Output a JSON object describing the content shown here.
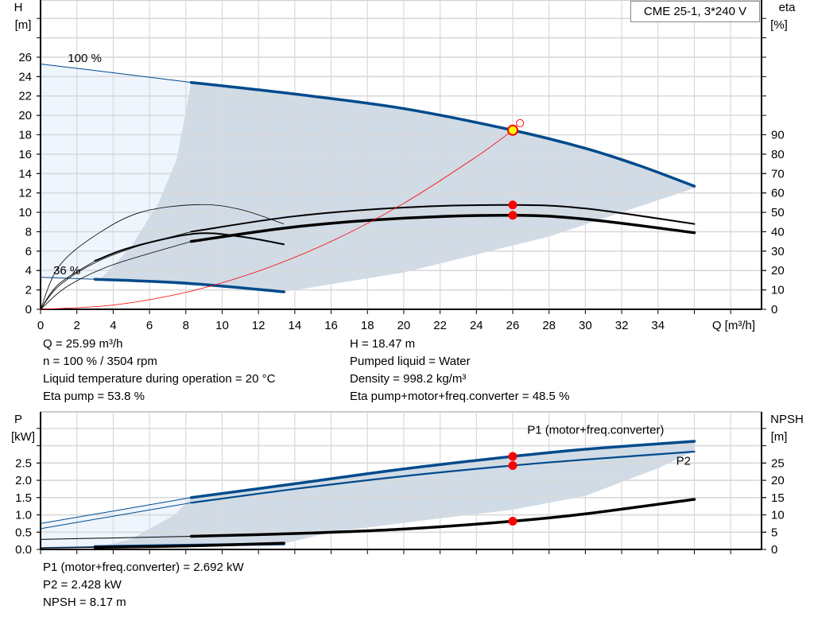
{
  "colors": {
    "qh": "#004A8C",
    "eta": "#000000",
    "system": "#FF0000",
    "dark_area": "#D0DBE6",
    "light_area": "#EEF5FD",
    "grid": "#D9D9D9",
    "point": "#FF0000",
    "duty_point": "#FFFF00"
  },
  "legend_box": "CME 25-1, 3*240 V",
  "chart_data": [
    {
      "type": "line",
      "xlabel": "Q [m³/h]",
      "ylabel": "H",
      "ylabel_unit": "[m]",
      "y2label": "eta",
      "y2label_unit": "[%]",
      "xlim": [
        0,
        39.7
      ],
      "ylim": [
        0,
        31.9
      ],
      "y2lim": [
        0,
        159.5
      ],
      "x_ticks": [
        0,
        2,
        4,
        6,
        8,
        10,
        12,
        14,
        16,
        18,
        20,
        22,
        24,
        26,
        28,
        30,
        32,
        34
      ],
      "y_ticks": [
        0,
        2,
        4,
        6,
        8,
        10,
        12,
        14,
        16,
        18,
        20,
        22,
        24,
        26
      ],
      "y2_ticks": [
        0,
        10,
        20,
        30,
        40,
        50,
        60,
        70,
        80,
        90
      ],
      "grid": true,
      "curve_labels": [
        {
          "text": "100 %",
          "x": 1.5,
          "y": 25.5
        },
        {
          "text": "36 %",
          "x": 0.7,
          "y": 3.6
        }
      ],
      "areas": [
        {
          "kind": "light",
          "points": [
            [
              0,
              25.3
            ],
            [
              8.3,
              23.4
            ],
            [
              7.5,
              15.5
            ],
            [
              6.5,
              11
            ],
            [
              5,
              6.5
            ],
            [
              3.3,
              3.1
            ],
            [
              0,
              3.3
            ]
          ]
        },
        {
          "kind": "dark",
          "points": [
            [
              8.3,
              23.4
            ],
            [
              14,
              22.2
            ],
            [
              20,
              20.7
            ],
            [
              26,
              18.47
            ],
            [
              30,
              16.6
            ],
            [
              33,
              14.8
            ],
            [
              36,
              12.7
            ],
            [
              36,
              12.5
            ],
            [
              28,
              7.5
            ],
            [
              20,
              3.8
            ],
            [
              13.4,
              1.8
            ],
            [
              3.3,
              3.1
            ],
            [
              5,
              6.5
            ],
            [
              6.5,
              11
            ],
            [
              7.5,
              15.5
            ],
            [
              8.3,
              23.4
            ]
          ]
        }
      ],
      "series": [
        {
          "axis": "left",
          "kind": "qh",
          "extrapolated": [
            [
              0,
              25.3
            ],
            [
              4,
              24.4
            ],
            [
              8.3,
              23.4
            ]
          ],
          "points": [
            [
              8.3,
              23.4
            ],
            [
              14,
              22.2
            ],
            [
              20,
              20.7
            ],
            [
              26,
              18.47
            ],
            [
              30,
              16.6
            ],
            [
              33,
              14.8
            ],
            [
              36,
              12.7
            ]
          ]
        },
        {
          "axis": "left",
          "kind": "qh",
          "extrapolated": [
            [
              0,
              3.3
            ],
            [
              3,
              3.1
            ]
          ],
          "points": [
            [
              3,
              3.1
            ],
            [
              8,
              2.7
            ],
            [
              13.4,
              1.8
            ]
          ]
        },
        {
          "axis": "right",
          "kind": "eta",
          "extrapolated": [
            [
              0,
              0
            ],
            [
              1,
              12
            ],
            [
              3,
              24
            ],
            [
              5.5,
              33
            ],
            [
              8.3,
              40
            ]
          ],
          "points": [
            [
              8.3,
              40
            ],
            [
              14,
              48
            ],
            [
              20,
              52.5
            ],
            [
              26,
              53.8
            ],
            [
              30,
              52
            ],
            [
              36,
              44
            ]
          ]
        },
        {
          "axis": "right",
          "kind": "eta-bold",
          "extrapolated": [
            [
              0,
              0
            ],
            [
              1.5,
              12
            ],
            [
              4,
              23
            ],
            [
              8.3,
              35
            ]
          ],
          "points": [
            [
              8.3,
              35
            ],
            [
              14,
              42.5
            ],
            [
              20,
              47
            ],
            [
              26,
              48.5
            ],
            [
              30,
              46.5
            ],
            [
              36,
              39.5
            ]
          ]
        },
        {
          "axis": "right",
          "kind": "eta",
          "extrapolated": [
            [
              0,
              0
            ],
            [
              1,
              13
            ],
            [
              3,
              25
            ]
          ],
          "points": [
            [
              3,
              25
            ],
            [
              5,
              32
            ],
            [
              8.5,
              39
            ],
            [
              11,
              37.5
            ],
            [
              13.4,
              33.5
            ]
          ]
        },
        {
          "axis": "right",
          "kind": "eta",
          "extrapolated": [
            [
              0,
              0
            ],
            [
              1,
              22
            ],
            [
              3,
              38
            ],
            [
              5.5,
              50
            ],
            [
              8.7,
              54
            ],
            [
              11,
              51.5
            ],
            [
              13.4,
              44
            ]
          ],
          "points": []
        },
        {
          "axis": "left",
          "kind": "system",
          "extrapolated": [],
          "points": [
            [
              0,
              0
            ],
            [
              4,
              0.44
            ],
            [
              8,
              1.75
            ],
            [
              12,
              3.94
            ],
            [
              16,
              7.0
            ],
            [
              20,
              10.93
            ],
            [
              24,
              15.74
            ],
            [
              26,
              18.47
            ]
          ]
        }
      ],
      "markers": [
        {
          "axis": "left",
          "kind": "duty",
          "x": 26,
          "y": 18.47
        },
        {
          "axis": "left",
          "kind": "open",
          "x": 26.4,
          "y": 19.2
        },
        {
          "axis": "right",
          "kind": "dot",
          "x": 26,
          "y": 53.8
        },
        {
          "axis": "right",
          "kind": "dot",
          "x": 26,
          "y": 48.5
        }
      ]
    },
    {
      "type": "line",
      "ylabel": "P",
      "ylabel_unit": "[kW]",
      "y2label": "NPSH",
      "y2label_unit": "[m]",
      "xlim": [
        0,
        39.7
      ],
      "ylim": [
        0,
        3.98
      ],
      "y2lim": [
        0,
        39.8
      ],
      "y_ticks": [
        "0.0",
        "0.5",
        "1.0",
        "1.5",
        "2.0",
        "2.5"
      ],
      "y2_ticks": [
        0,
        5,
        10,
        15,
        20,
        25
      ],
      "grid": true,
      "series_labels": [
        {
          "text": "P1 (motor+freq.converter)",
          "x": 26.8,
          "y": 3.35
        },
        {
          "text": "P2",
          "x": 35,
          "y": 2.45
        }
      ],
      "areas": [
        {
          "kind": "light",
          "points": [
            [
              0,
              0.75
            ],
            [
              8.3,
              1.5
            ],
            [
              7.4,
              1.0
            ],
            [
              6,
              0.6
            ],
            [
              5,
              0.3
            ],
            [
              3,
              0.05
            ],
            [
              0,
              0
            ]
          ]
        },
        {
          "kind": "dark",
          "points": [
            [
              8.3,
              1.5
            ],
            [
              14,
              1.9
            ],
            [
              20,
              2.33
            ],
            [
              26,
              2.692
            ],
            [
              30,
              2.9
            ],
            [
              36,
              3.13
            ],
            [
              36,
              2.85
            ],
            [
              34,
              2.35
            ],
            [
              30,
              1.55
            ],
            [
              26,
              1.15
            ],
            [
              22,
              0.9
            ],
            [
              16,
              0.5
            ],
            [
              13.4,
              0.17
            ],
            [
              7,
              0.1
            ],
            [
              3,
              0.05
            ],
            [
              5,
              0.3
            ],
            [
              6,
              0.6
            ],
            [
              7.4,
              1.0
            ],
            [
              8.3,
              1.5
            ]
          ]
        }
      ],
      "series": [
        {
          "axis": "left",
          "kind": "p1",
          "name": "P1 (motor+freq.converter)",
          "extrapolated": [
            [
              0,
              0.75
            ],
            [
              8.3,
              1.5
            ]
          ],
          "points": [
            [
              8.3,
              1.5
            ],
            [
              14,
              1.9
            ],
            [
              20,
              2.33
            ],
            [
              26,
              2.692
            ],
            [
              30,
              2.9
            ],
            [
              36,
              3.13
            ]
          ]
        },
        {
          "axis": "left",
          "kind": "p2",
          "name": "P2",
          "extrapolated": [
            [
              0,
              0.6
            ],
            [
              8.3,
              1.35
            ]
          ],
          "points": [
            [
              8.3,
              1.35
            ],
            [
              14,
              1.75
            ],
            [
              20,
              2.12
            ],
            [
              26,
              2.428
            ],
            [
              30,
              2.6
            ],
            [
              36,
              2.83
            ]
          ]
        },
        {
          "axis": "right",
          "kind": "npsh",
          "extrapolated": [
            [
              0,
              2.9
            ],
            [
              8.3,
              3.8
            ]
          ],
          "points": [
            [
              8.3,
              3.8
            ],
            [
              14,
              4.6
            ],
            [
              20,
              5.9
            ],
            [
              26,
              8.17
            ],
            [
              30,
              10.3
            ],
            [
              36,
              14.5
            ]
          ]
        },
        {
          "axis": "left",
          "kind": "p1",
          "extrapolated": [
            [
              0,
              0.05
            ],
            [
              3,
              0.08
            ]
          ],
          "points": [
            [
              3,
              0.08
            ],
            [
              8,
              0.12
            ],
            [
              13.4,
              0.16
            ]
          ]
        },
        {
          "axis": "right",
          "kind": "npsh",
          "extrapolated": [
            [
              0,
              0.4
            ],
            [
              3,
              0.6
            ]
          ],
          "points": [
            [
              3,
              0.6
            ],
            [
              8,
              1.0
            ],
            [
              13.4,
              1.8
            ]
          ]
        }
      ],
      "markers": [
        {
          "axis": "left",
          "kind": "dot",
          "x": 26,
          "y": 2.692
        },
        {
          "axis": "left",
          "kind": "dot",
          "x": 26,
          "y": 2.428
        },
        {
          "axis": "right",
          "kind": "dot",
          "x": 26,
          "y": 8.17
        }
      ]
    }
  ],
  "info_top": {
    "q": "Q = 25.99 m³/h",
    "n": "n = 100 % / 3504 rpm",
    "temp": "Liquid temperature during operation = 20 °C",
    "eta_pump": "Eta pump = 53.8 %",
    "h": "H = 18.47 m",
    "liquid": "Pumped liquid = Water",
    "density": "Density = 998.2 kg/m³",
    "eta_total": "Eta pump+motor+freq.converter = 48.5 %"
  },
  "info_bottom": {
    "p1": "P1 (motor+freq.converter) = 2.692 kW",
    "p2": "P2 = 2.428 kW",
    "npsh": "NPSH = 8.17 m"
  }
}
